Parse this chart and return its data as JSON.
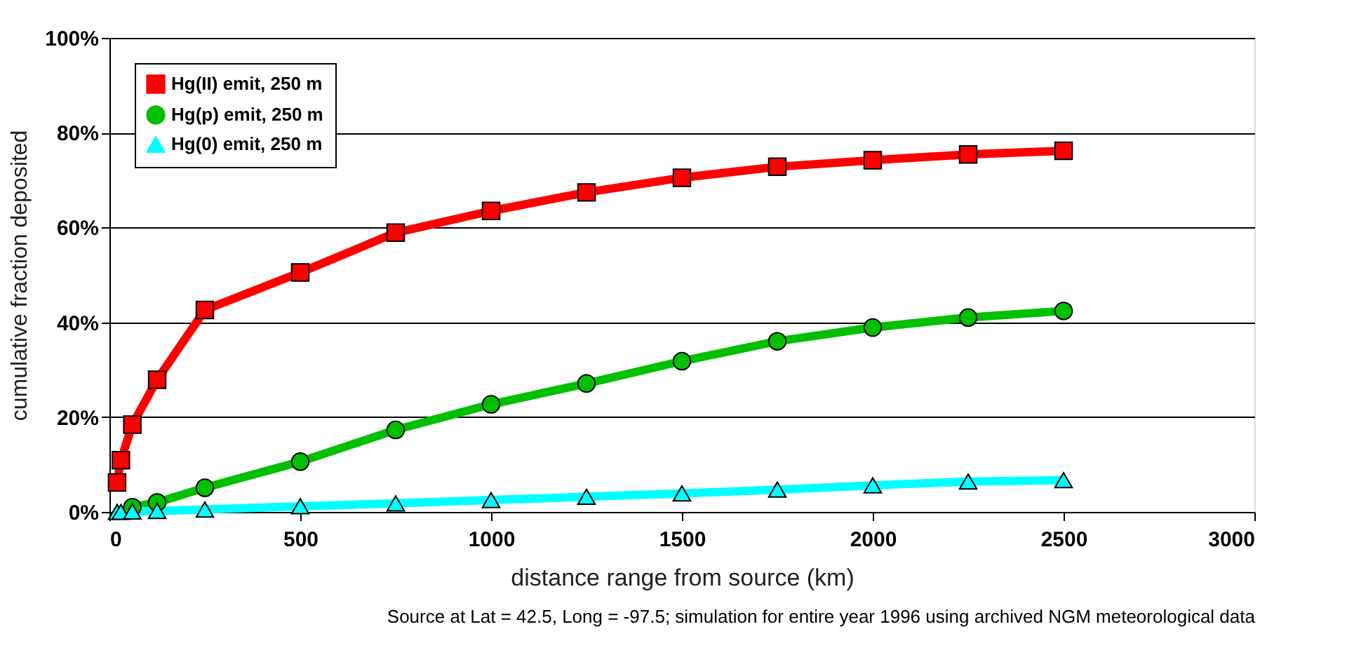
{
  "chart_data": {
    "type": "line",
    "xlabel": "distance range from source (km)",
    "ylabel": "cumulative fraction deposited",
    "xlim": [
      0,
      3000
    ],
    "xticks": [
      0,
      500,
      1000,
      1500,
      2000,
      2500,
      3000
    ],
    "ylim": [
      0,
      100
    ],
    "yticks": [
      {
        "value": 0,
        "label": "0%"
      },
      {
        "value": 20,
        "label": "20%"
      },
      {
        "value": 40,
        "label": "40%"
      },
      {
        "value": 60,
        "label": "60%"
      },
      {
        "value": 80,
        "label": "80%"
      },
      {
        "value": 100,
        "label": "100%"
      }
    ],
    "grid": "y",
    "legend": "top left",
    "line_style": "solid",
    "annotations": [
      "Source at Lat = 42.5, Long = -97.5; simulation for entire year 1996 using archived NGM meteorological data"
    ],
    "series": [
      {
        "name": "Hg(II) emit, 250 m",
        "color": "#ff0000",
        "marker": "square",
        "x": [
          20,
          30,
          60,
          125,
          250,
          500,
          750,
          1000,
          1250,
          1500,
          1750,
          2000,
          2250,
          2500
        ],
        "values": [
          6.2,
          10.9,
          18.4,
          27.9,
          42.6,
          50.5,
          58.9,
          63.5,
          67.4,
          70.5,
          72.8,
          74.2,
          75.4,
          76.2
        ]
      },
      {
        "name": "Hg(p) emit, 250 m",
        "color": "#00c000",
        "marker": "circle",
        "x": [
          60,
          125,
          250,
          500,
          750,
          1000,
          1250,
          1500,
          1750,
          2000,
          2250,
          2500
        ],
        "values": [
          1.0,
          2.0,
          5.1,
          10.6,
          17.3,
          22.7,
          27.1,
          31.8,
          36.0,
          38.9,
          41.0,
          42.4
        ]
      },
      {
        "name": "Hg(0) emit, 250 m",
        "color": "#00ffff",
        "marker": "triangle",
        "x": [
          20,
          30,
          60,
          125,
          250,
          500,
          750,
          1000,
          1250,
          1500,
          1750,
          2000,
          2250,
          2500
        ],
        "values": [
          0.0,
          0.0,
          0.1,
          0.2,
          0.5,
          1.2,
          1.8,
          2.5,
          3.2,
          3.9,
          4.7,
          5.6,
          6.4,
          6.7
        ]
      }
    ]
  }
}
